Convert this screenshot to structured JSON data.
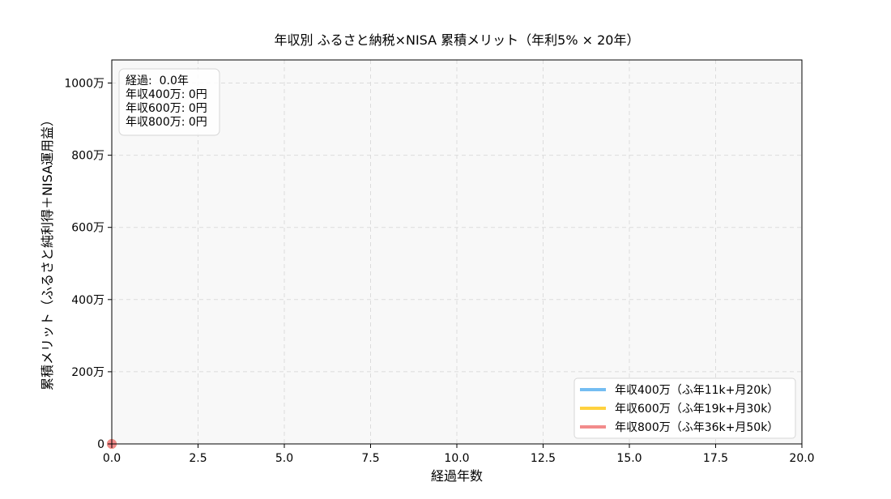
{
  "chart_data": {
    "type": "line",
    "title": "年収別 ふるさと納税×NISA 累積メリット（年利5% × 20年）",
    "xlabel": "経過年数",
    "ylabel": "累積メリット（ふるさと純利得＋NISA運用益）",
    "xlim": [
      0,
      20
    ],
    "ylim": [
      0,
      1064
    ],
    "x_ticks": [
      0,
      2.5,
      5,
      7.5,
      10,
      12.5,
      15,
      17.5,
      20
    ],
    "x_tick_labels": [
      "0.0",
      "2.5",
      "5.0",
      "7.5",
      "10.0",
      "12.5",
      "15.0",
      "17.5",
      "20.0"
    ],
    "y_ticks": [
      0,
      200,
      400,
      600,
      800,
      1000
    ],
    "y_tick_labels": [
      "0",
      "200万",
      "400万",
      "600万",
      "800万",
      "1000万"
    ],
    "y_unit": "万円",
    "grid": true,
    "legend_position": "lower-right",
    "series": [
      {
        "name": "年収400万（ふ年11k+月20k）",
        "color": "#74bdf2",
        "x": [
          0
        ],
        "values": [
          0
        ]
      },
      {
        "name": "年収600万（ふ年19k+月30k）",
        "color": "#ffd23f",
        "x": [
          0
        ],
        "values": [
          0
        ]
      },
      {
        "name": "年収800万（ふ年36k+月50k）",
        "color": "#f28b8b",
        "x": [
          0
        ],
        "values": [
          0
        ]
      }
    ],
    "annotation": {
      "lines": [
        "経過:  0.0年",
        "年収400万: 0円",
        "年収600万: 0円",
        "年収800万: 0円"
      ]
    }
  }
}
